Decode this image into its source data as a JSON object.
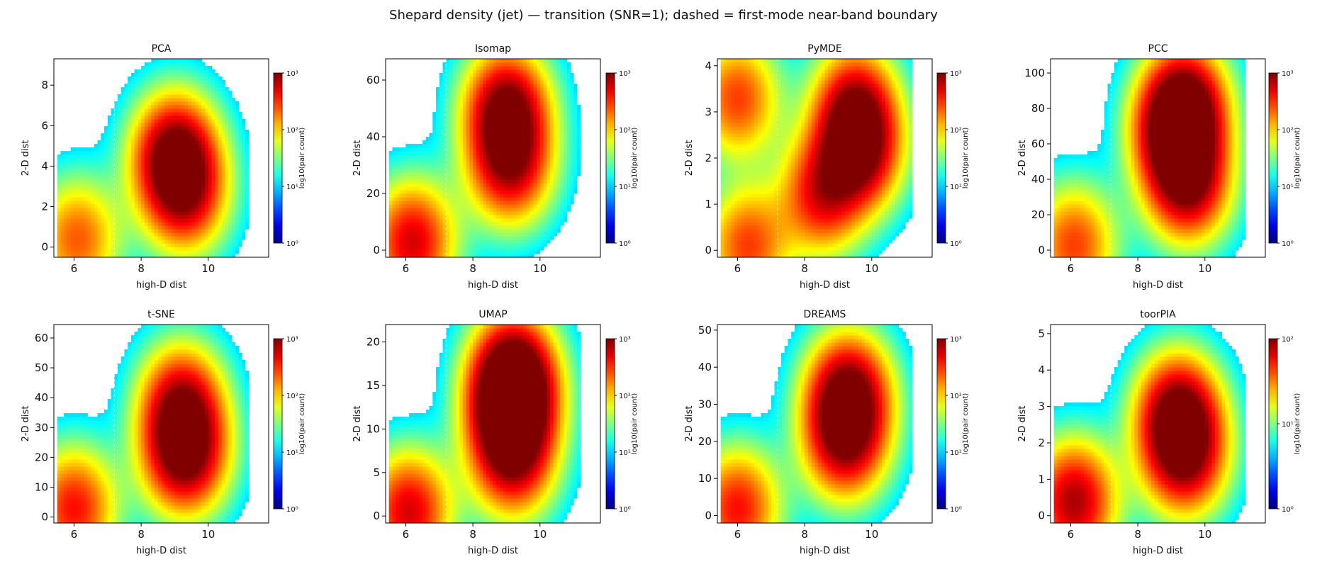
{
  "figure": {
    "title": "Shepard density (jet) — transition (SNR=1); dashed = first-mode near-band boundary"
  },
  "colors": {
    "colormap": "jet",
    "boundary_line": "#ffffff",
    "axes": "#000000"
  },
  "chart_data": [
    {
      "type": "heatmap",
      "title": "PCA",
      "xlabel": "high-D dist",
      "ylabel": "2-D dist",
      "xlim": [
        5.4,
        11.8
      ],
      "ylim": [
        -0.5,
        9.3
      ],
      "xticks": [
        6,
        8,
        10
      ],
      "yticks": [
        0,
        2,
        4,
        6,
        8
      ],
      "cbar_label": "log10(pair count)",
      "cbar_max_exp": 3,
      "cbar_ticks": [
        "10⁰",
        "10¹",
        "10²",
        "10³"
      ],
      "boundary_x": 7.2,
      "modes": [
        {
          "x": 6.1,
          "y": 0.4,
          "w": 0.55
        },
        {
          "x": 9.0,
          "y": 4.6,
          "w": 1.0
        },
        {
          "x": 9.3,
          "y": 2.6,
          "w": 0.7
        }
      ]
    },
    {
      "type": "heatmap",
      "title": "Isomap",
      "xlabel": "high-D dist",
      "ylabel": "2-D dist",
      "xlim": [
        5.4,
        11.8
      ],
      "ylim": [
        -2.5,
        67.5
      ],
      "xticks": [
        6,
        8,
        10
      ],
      "yticks": [
        0,
        20,
        40,
        60
      ],
      "cbar_label": "log10(pair count)",
      "cbar_max_exp": 3,
      "cbar_ticks": [
        "10⁰",
        "10¹",
        "10²",
        "10³"
      ],
      "boundary_x": 7.2,
      "modes": [
        {
          "x": 6.2,
          "y": 3,
          "w": 0.8
        },
        {
          "x": 9.0,
          "y": 50,
          "w": 1.0
        },
        {
          "x": 9.1,
          "y": 30,
          "w": 0.8
        }
      ]
    },
    {
      "type": "heatmap",
      "title": "PyMDE",
      "xlabel": "high-D dist",
      "ylabel": "2-D dist",
      "xlim": [
        5.4,
        11.8
      ],
      "ylim": [
        -0.15,
        4.15
      ],
      "xticks": [
        6,
        8,
        10
      ],
      "yticks": [
        0,
        1,
        2,
        3,
        4
      ],
      "cbar_label": "log10(pair count)",
      "cbar_max_exp": 3,
      "cbar_ticks": [
        "10⁰",
        "10¹",
        "10²",
        "10³"
      ],
      "boundary_x": 7.2,
      "modes": [
        {
          "x": 6.0,
          "y": 3.3,
          "w": 0.6
        },
        {
          "x": 9.6,
          "y": 2.2,
          "w": 1.0
        },
        {
          "x": 9.5,
          "y": 3.2,
          "w": 0.7
        },
        {
          "x": 8.5,
          "y": 1.2,
          "w": 0.7
        },
        {
          "x": 6.3,
          "y": 0.1,
          "w": 0.6
        }
      ]
    },
    {
      "type": "heatmap",
      "title": "PCC",
      "xlabel": "high-D dist",
      "ylabel": "2-D dist",
      "xlim": [
        5.4,
        11.8
      ],
      "ylim": [
        -4,
        108
      ],
      "xticks": [
        6,
        8,
        10
      ],
      "yticks": [
        0,
        20,
        40,
        60,
        80,
        100
      ],
      "cbar_label": "log10(pair count)",
      "cbar_max_exp": 3,
      "cbar_ticks": [
        "10⁰",
        "10¹",
        "10²",
        "10³"
      ],
      "boundary_x": 7.2,
      "modes": [
        {
          "x": 6.1,
          "y": 3,
          "w": 0.6
        },
        {
          "x": 9.4,
          "y": 82,
          "w": 1.0
        },
        {
          "x": 9.1,
          "y": 65,
          "w": 0.8
        },
        {
          "x": 9.5,
          "y": 38,
          "w": 0.9
        }
      ]
    },
    {
      "type": "heatmap",
      "title": "t-SNE",
      "xlabel": "high-D dist",
      "ylabel": "2-D dist",
      "xlim": [
        5.4,
        11.8
      ],
      "ylim": [
        -2,
        64.5
      ],
      "xticks": [
        6,
        8,
        10
      ],
      "yticks": [
        0,
        10,
        20,
        30,
        40,
        50,
        60
      ],
      "cbar_label": "log10(pair count)",
      "cbar_max_exp": 3,
      "cbar_ticks": [
        "10⁰",
        "10¹",
        "10²",
        "10³"
      ],
      "boundary_x": 7.2,
      "modes": [
        {
          "x": 6.0,
          "y": 3,
          "w": 0.7
        },
        {
          "x": 9.3,
          "y": 21,
          "w": 1.0
        },
        {
          "x": 9.2,
          "y": 38,
          "w": 0.8
        }
      ]
    },
    {
      "type": "heatmap",
      "title": "UMAP",
      "xlabel": "high-D dist",
      "ylabel": "2-D dist",
      "xlim": [
        5.4,
        11.8
      ],
      "ylim": [
        -0.8,
        22
      ],
      "xticks": [
        6,
        8,
        10
      ],
      "yticks": [
        0,
        5,
        10,
        15,
        20
      ],
      "cbar_label": "log10(pair count)",
      "cbar_max_exp": 3,
      "cbar_ticks": [
        "10⁰",
        "10¹",
        "10²",
        "10³"
      ],
      "boundary_x": 7.2,
      "modes": [
        {
          "x": 6.1,
          "y": 0.5,
          "w": 0.8
        },
        {
          "x": 9.2,
          "y": 16.5,
          "w": 1.0
        },
        {
          "x": 9.2,
          "y": 13,
          "w": 0.7
        },
        {
          "x": 9.1,
          "y": 10.5,
          "w": 0.6
        },
        {
          "x": 9.2,
          "y": 6,
          "w": 0.6
        }
      ]
    },
    {
      "type": "heatmap",
      "title": "DREAMS",
      "xlabel": "high-D dist",
      "ylabel": "2-D dist",
      "xlim": [
        5.4,
        11.8
      ],
      "ylim": [
        -2,
        51.5
      ],
      "xticks": [
        6,
        8,
        10
      ],
      "yticks": [
        0,
        10,
        20,
        30,
        40,
        50
      ],
      "cbar_label": "log10(pair count)",
      "cbar_max_exp": 3,
      "cbar_ticks": [
        "10⁰",
        "10¹",
        "10²",
        "10³"
      ],
      "boundary_x": 7.2,
      "modes": [
        {
          "x": 6.0,
          "y": 2,
          "w": 0.7
        },
        {
          "x": 9.3,
          "y": 33,
          "w": 1.0
        },
        {
          "x": 9.2,
          "y": 20,
          "w": 0.8
        }
      ]
    },
    {
      "type": "heatmap",
      "title": "toorPIA",
      "xlabel": "high-D dist",
      "ylabel": "2-D dist",
      "xlim": [
        5.4,
        11.8
      ],
      "ylim": [
        -0.2,
        5.25
      ],
      "xticks": [
        6,
        8,
        10
      ],
      "yticks": [
        0,
        1,
        2,
        3,
        4,
        5
      ],
      "cbar_label": "log10(pair count)",
      "cbar_max_exp": 2,
      "cbar_ticks": [
        "10⁰",
        "10¹",
        "10²"
      ],
      "boundary_x": 7.2,
      "modes": [
        {
          "x": 6.1,
          "y": 0.4,
          "w": 0.9
        },
        {
          "x": 9.2,
          "y": 2.8,
          "w": 1.0
        },
        {
          "x": 9.4,
          "y": 1.6,
          "w": 0.8
        }
      ]
    }
  ]
}
